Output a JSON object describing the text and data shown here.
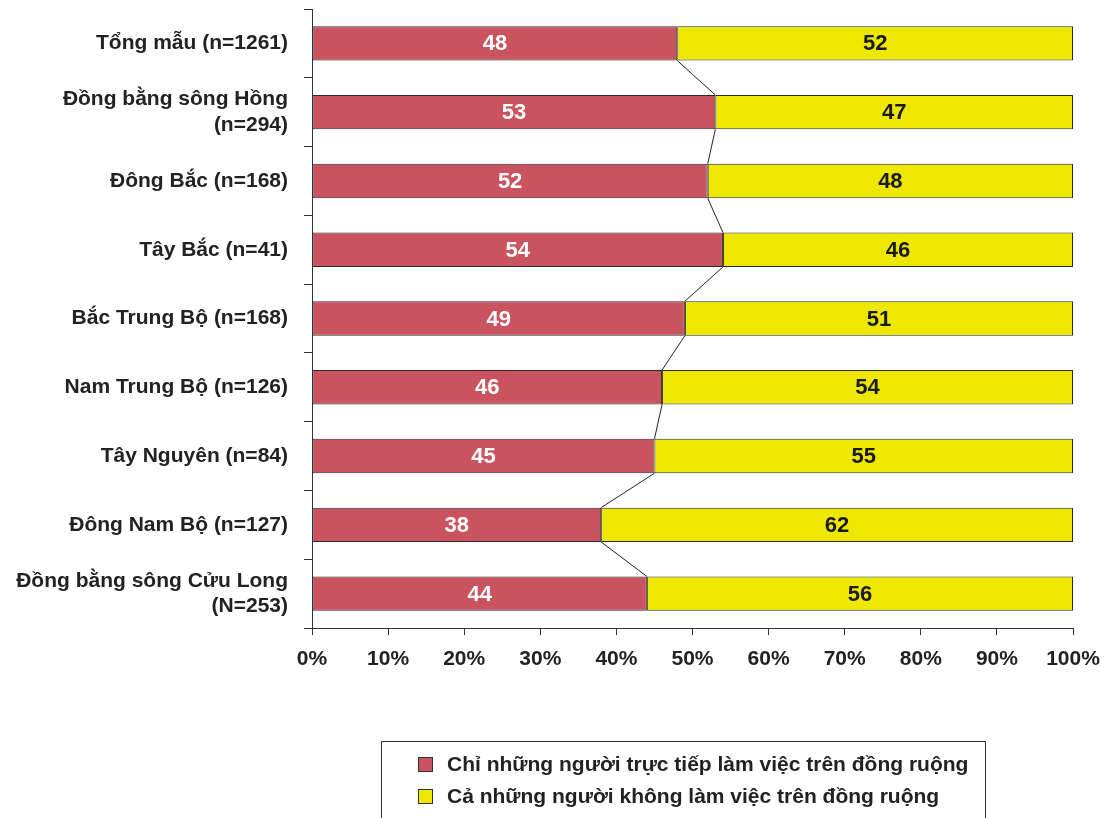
{
  "chart_data": {
    "type": "bar",
    "orientation": "horizontal",
    "stacked": true,
    "categories": [
      "Tổng mẫu (n=1261)",
      "Đồng bằng sông Hồng (n=294)",
      "Đông Bắc (n=168)",
      "Tây Bắc (n=41)",
      "Bắc Trung Bộ (n=168)",
      "Nam Trung Bộ (n=126)",
      "Tây Nguyên (n=84)",
      "Đông Nam Bộ (n=127)",
      "Đồng bằng sông Cửu Long (N=253)"
    ],
    "series": [
      {
        "name": "Chỉ những người trực tiếp làm việc trên đồng ruộng",
        "color": "#c9545f",
        "values": [
          48,
          53,
          52,
          54,
          49,
          46,
          45,
          38,
          44
        ]
      },
      {
        "name": "Cả những người không làm việc trên đồng ruộng",
        "color": "#eee800",
        "values": [
          52,
          47,
          48,
          46,
          51,
          54,
          55,
          62,
          56
        ]
      }
    ],
    "xlim": [
      0,
      100
    ],
    "xticks": [
      {
        "value": 0,
        "label": "0%"
      },
      {
        "value": 10,
        "label": "10%"
      },
      {
        "value": 20,
        "label": "20%"
      },
      {
        "value": 30,
        "label": "30%"
      },
      {
        "value": 40,
        "label": "40%"
      },
      {
        "value": 50,
        "label": "50%"
      },
      {
        "value": 60,
        "label": "60%"
      },
      {
        "value": 70,
        "label": "70%"
      },
      {
        "value": 80,
        "label": "80%"
      },
      {
        "value": 90,
        "label": "90%"
      },
      {
        "value": 100,
        "label": "100%"
      }
    ],
    "data_labels": true,
    "legend": "bottom",
    "grid": false
  }
}
